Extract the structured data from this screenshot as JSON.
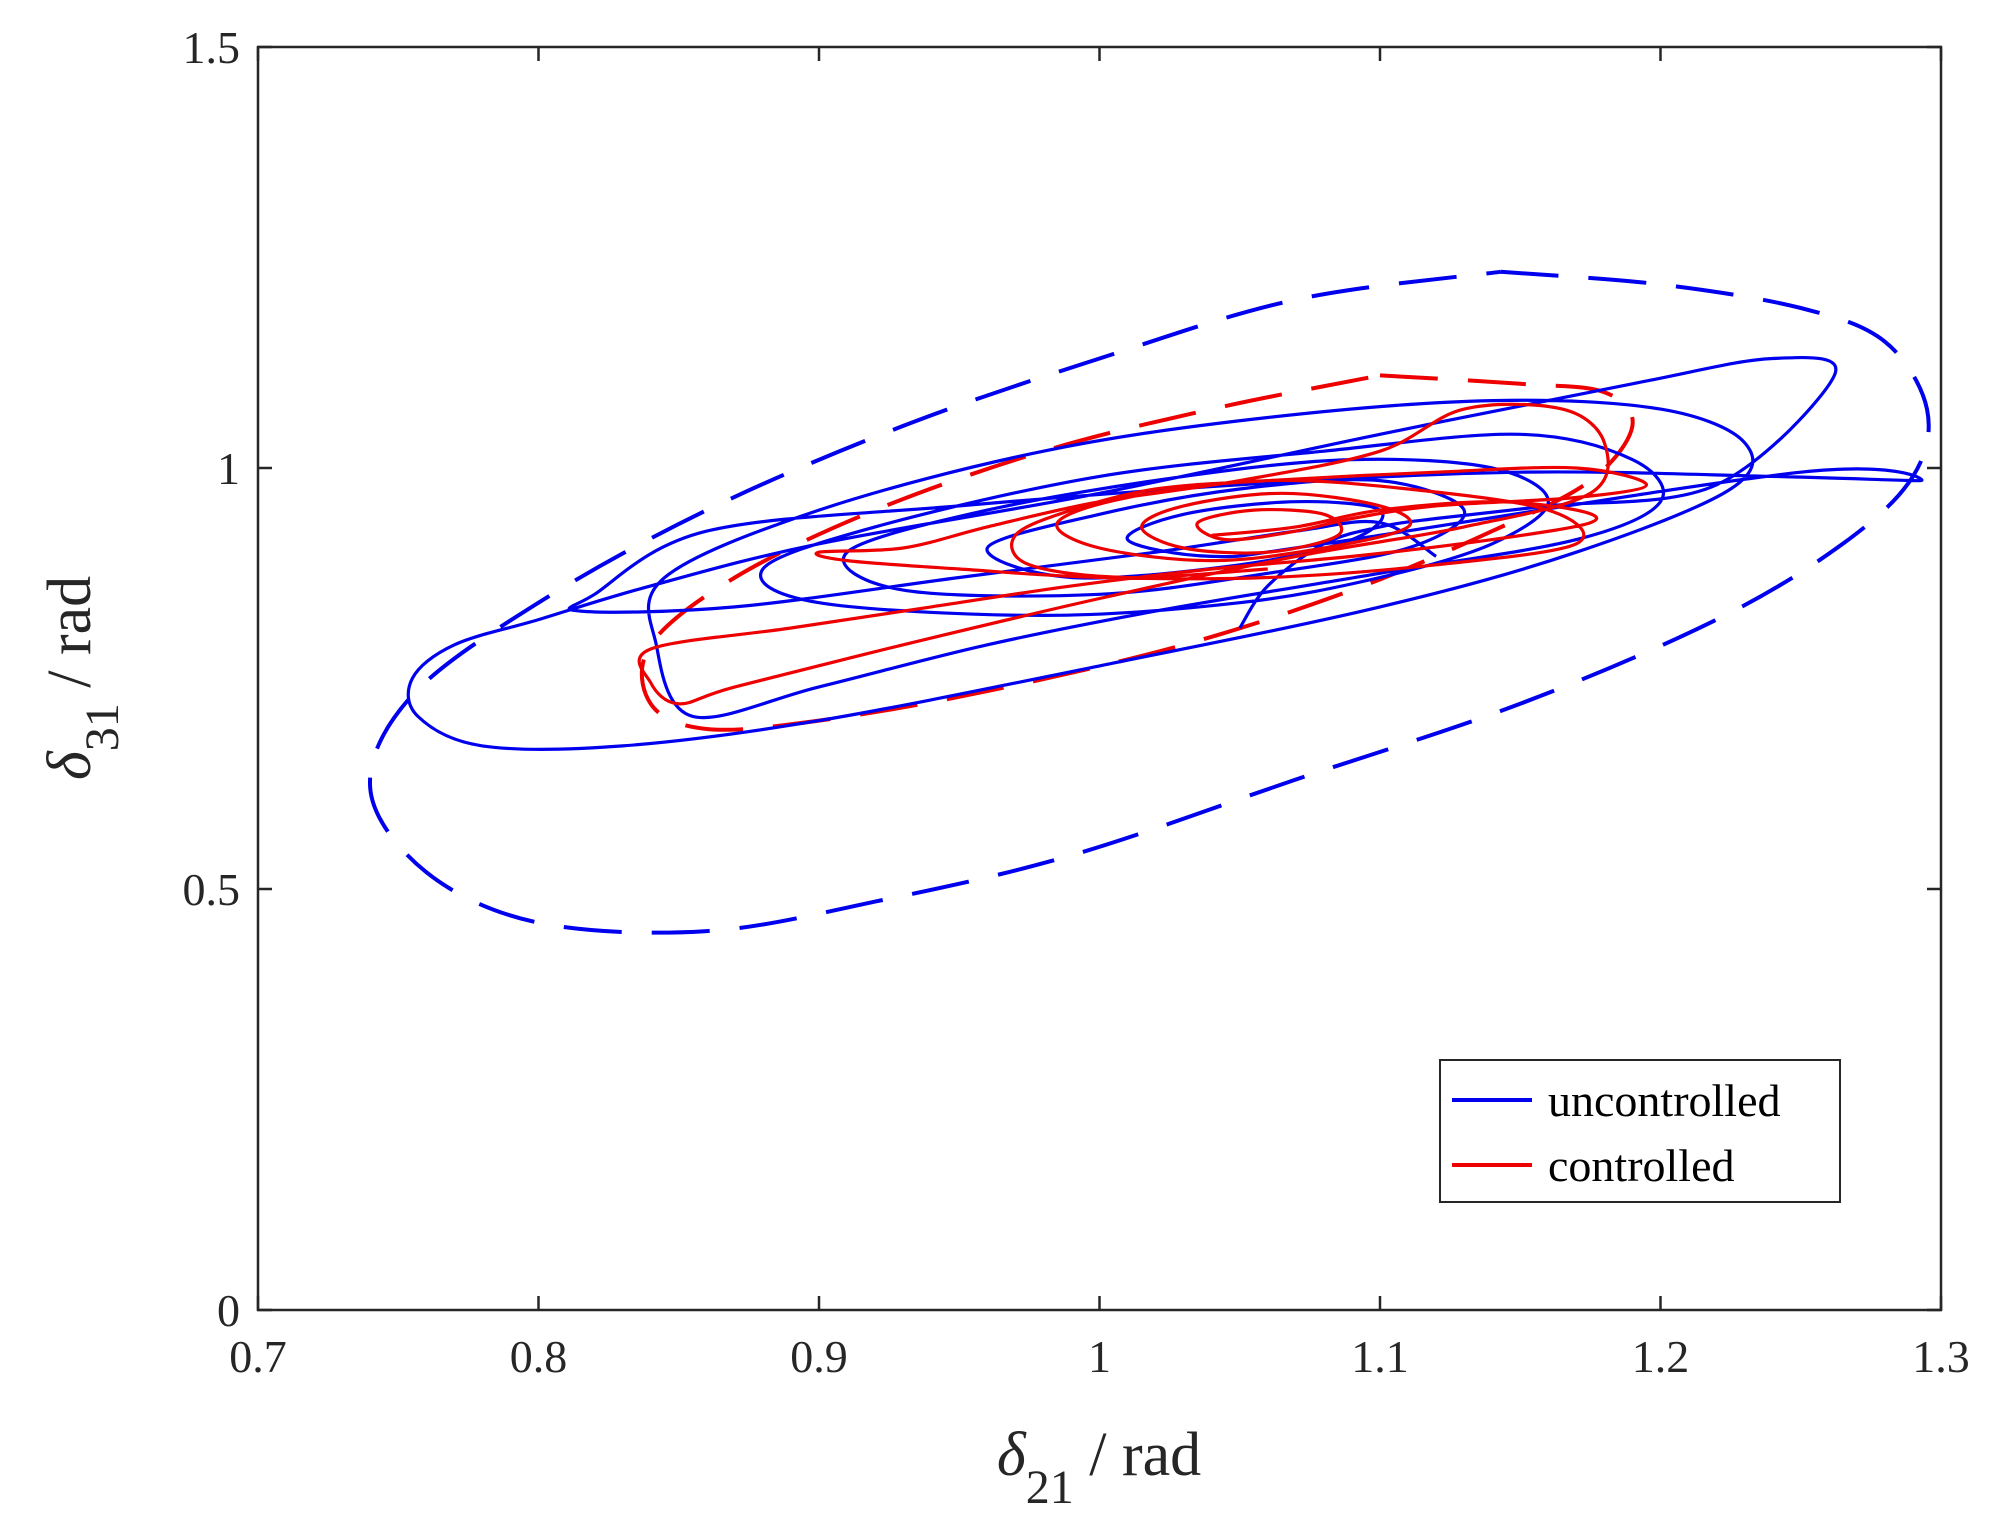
{
  "chart_data": {
    "type": "line",
    "title": "",
    "xlabel": {
      "symbol": "δ",
      "subscript": "21",
      "unit": " / rad"
    },
    "ylabel": {
      "symbol": "δ",
      "subscript": "31",
      "unit": " / rad"
    },
    "xlim": [
      0.7,
      1.3
    ],
    "ylim": [
      0,
      1.5
    ],
    "xticks": [
      0.7,
      0.8,
      0.9,
      1.0,
      1.1,
      1.2,
      1.3
    ],
    "xtick_labels": [
      "0.7",
      "0.8",
      "0.9",
      "1",
      "1.1",
      "1.2",
      "1.3"
    ],
    "yticks": [
      0,
      0.5,
      1.0,
      1.5
    ],
    "ytick_labels": [
      "0",
      "0.5",
      "1",
      "1.5"
    ],
    "grid": false,
    "legend": {
      "position": "bottom-right",
      "entries": [
        "uncontrolled",
        "controlled"
      ]
    },
    "colors": {
      "uncontrolled": "#0000ee",
      "controlled": "#ee0000",
      "axis": "#262626"
    },
    "series": [
      {
        "name": "uncontrolled boundary",
        "style": "dashed",
        "color": "#0000ee",
        "in_legend": false,
        "points": [
          [
            1.143,
            1.233
          ],
          [
            1.2,
            1.218
          ],
          [
            1.25,
            1.19
          ],
          [
            1.28,
            1.15
          ],
          [
            1.295,
            1.07
          ],
          [
            1.29,
            0.99
          ],
          [
            1.265,
            0.91
          ],
          [
            1.22,
            0.82
          ],
          [
            1.15,
            0.72
          ],
          [
            1.07,
            0.63
          ],
          [
            0.99,
            0.54
          ],
          [
            0.92,
            0.485
          ],
          [
            0.86,
            0.45
          ],
          [
            0.8,
            0.46
          ],
          [
            0.76,
            0.52
          ],
          [
            0.74,
            0.62
          ],
          [
            0.755,
            0.73
          ],
          [
            0.8,
            0.84
          ],
          [
            0.86,
            0.95
          ],
          [
            0.93,
            1.05
          ],
          [
            1.0,
            1.13
          ],
          [
            1.07,
            1.2
          ],
          [
            1.143,
            1.233
          ]
        ]
      },
      {
        "name": "controlled boundary",
        "style": "dashed",
        "color": "#ee0000",
        "in_legend": false,
        "points": [
          [
            1.1,
            1.11
          ],
          [
            1.15,
            1.1
          ],
          [
            1.18,
            1.09
          ],
          [
            1.19,
            1.05
          ],
          [
            1.175,
            0.985
          ],
          [
            1.14,
            0.925
          ],
          [
            1.09,
            0.855
          ],
          [
            1.03,
            0.79
          ],
          [
            0.96,
            0.735
          ],
          [
            0.9,
            0.7
          ],
          [
            0.86,
            0.69
          ],
          [
            0.84,
            0.72
          ],
          [
            0.84,
            0.79
          ],
          [
            0.87,
            0.87
          ],
          [
            0.92,
            0.95
          ],
          [
            0.98,
            1.02
          ],
          [
            1.04,
            1.07
          ],
          [
            1.1,
            1.11
          ]
        ]
      },
      {
        "name": "uncontrolled",
        "style": "solid",
        "color": "#0000ee",
        "in_legend": true,
        "points": [
          [
            1.05,
            0.81
          ],
          [
            1.06,
            0.86
          ],
          [
            1.08,
            0.91
          ],
          [
            1.1,
            0.93
          ],
          [
            1.12,
            0.94
          ],
          [
            1.16,
            0.955
          ],
          [
            1.22,
            0.98
          ],
          [
            1.262,
            1.11
          ],
          [
            1.24,
            1.13
          ],
          [
            1.19,
            1.1
          ],
          [
            1.1,
            1.04
          ],
          [
            1.0,
            0.97
          ],
          [
            0.9,
            0.91
          ],
          [
            0.84,
            0.86
          ],
          [
            0.8,
            0.82
          ],
          [
            0.77,
            0.79
          ],
          [
            0.755,
            0.75
          ],
          [
            0.757,
            0.705
          ],
          [
            0.78,
            0.67
          ],
          [
            0.83,
            0.67
          ],
          [
            0.9,
            0.7
          ],
          [
            1.0,
            0.765
          ],
          [
            1.1,
            0.835
          ],
          [
            1.17,
            0.9
          ],
          [
            1.225,
            0.975
          ],
          [
            1.23,
            1.03
          ],
          [
            1.2,
            1.07
          ],
          [
            1.14,
            1.08
          ],
          [
            1.06,
            1.06
          ],
          [
            0.98,
            1.02
          ],
          [
            0.9,
            0.95
          ],
          [
            0.845,
            0.87
          ],
          [
            0.842,
            0.79
          ],
          [
            0.855,
            0.705
          ],
          [
            0.9,
            0.74
          ],
          [
            0.96,
            0.79
          ],
          [
            1.02,
            0.83
          ],
          [
            1.1,
            0.875
          ],
          [
            1.17,
            0.915
          ],
          [
            1.2,
            0.96
          ],
          [
            1.19,
            1.01
          ],
          [
            1.15,
            1.04
          ],
          [
            1.08,
            1.02
          ],
          [
            1.0,
            0.99
          ],
          [
            0.92,
            0.93
          ],
          [
            0.88,
            0.88
          ],
          [
            0.9,
            0.84
          ],
          [
            0.98,
            0.825
          ],
          [
            1.05,
            0.84
          ],
          [
            1.1,
            0.87
          ],
          [
            1.14,
            0.91
          ],
          [
            1.16,
            0.96
          ],
          [
            1.14,
            1.0
          ],
          [
            1.09,
            1.01
          ],
          [
            1.03,
            0.99
          ],
          [
            0.96,
            0.95
          ],
          [
            0.91,
            0.9
          ],
          [
            0.93,
            0.855
          ],
          [
            1.0,
            0.85
          ],
          [
            1.06,
            0.875
          ],
          [
            1.11,
            0.905
          ],
          [
            1.13,
            0.95
          ],
          [
            1.1,
            0.985
          ],
          [
            1.05,
            0.975
          ],
          [
            1.0,
            0.945
          ],
          [
            0.96,
            0.905
          ],
          [
            0.99,
            0.87
          ],
          [
            1.05,
            0.885
          ],
          [
            1.09,
            0.915
          ],
          [
            1.1,
            0.95
          ],
          [
            1.07,
            0.96
          ],
          [
            1.03,
            0.945
          ],
          [
            1.01,
            0.915
          ],
          [
            1.04,
            0.895
          ],
          [
            1.08,
            0.91
          ],
          [
            1.25,
            0.995
          ],
          [
            1.293,
            0.985
          ],
          [
            1.24,
            0.99
          ],
          [
            1.15,
            0.995
          ],
          [
            1.05,
            0.98
          ],
          [
            0.95,
            0.955
          ],
          [
            0.86,
            0.925
          ],
          [
            0.82,
            0.85
          ],
          [
            0.815,
            0.83
          ],
          [
            0.87,
            0.835
          ],
          [
            0.95,
            0.87
          ],
          [
            1.02,
            0.9
          ],
          [
            1.07,
            0.925
          ],
          [
            1.1,
            0.935
          ],
          [
            1.12,
            0.895
          ]
        ]
      },
      {
        "name": "controlled",
        "style": "solid",
        "color": "#ee0000",
        "in_legend": true,
        "points": [
          [
            1.04,
            0.92
          ],
          [
            1.07,
            0.93
          ],
          [
            1.1,
            0.95
          ],
          [
            1.14,
            0.96
          ],
          [
            1.17,
            0.95
          ],
          [
            1.175,
            0.935
          ],
          [
            1.14,
            0.915
          ],
          [
            1.09,
            0.895
          ],
          [
            1.04,
            0.88
          ],
          [
            0.99,
            0.86
          ],
          [
            0.94,
            0.835
          ],
          [
            0.89,
            0.81
          ],
          [
            0.84,
            0.785
          ],
          [
            0.84,
            0.745
          ],
          [
            0.85,
            0.72
          ],
          [
            0.87,
            0.74
          ],
          [
            0.93,
            0.79
          ],
          [
            1.0,
            0.845
          ],
          [
            1.07,
            0.895
          ],
          [
            1.13,
            0.93
          ],
          [
            1.175,
            0.97
          ],
          [
            1.18,
            1.03
          ],
          [
            1.165,
            1.07
          ],
          [
            1.13,
            1.07
          ],
          [
            1.1,
            1.02
          ],
          [
            1.05,
            0.985
          ],
          [
            1.0,
            0.96
          ],
          [
            0.96,
            0.93
          ],
          [
            0.93,
            0.905
          ],
          [
            0.9,
            0.9
          ],
          [
            0.91,
            0.89
          ],
          [
            0.95,
            0.88
          ],
          [
            1.0,
            0.87
          ],
          [
            1.06,
            0.87
          ],
          [
            1.12,
            0.885
          ],
          [
            1.17,
            0.91
          ],
          [
            1.16,
            0.95
          ],
          [
            1.11,
            0.975
          ],
          [
            1.06,
            0.985
          ],
          [
            1.01,
            0.965
          ],
          [
            0.985,
            0.935
          ],
          [
            1.0,
            0.905
          ],
          [
            1.04,
            0.89
          ],
          [
            1.08,
            0.905
          ],
          [
            1.11,
            0.93
          ],
          [
            1.1,
            0.955
          ],
          [
            1.065,
            0.97
          ],
          [
            1.03,
            0.955
          ],
          [
            1.015,
            0.93
          ],
          [
            1.03,
            0.905
          ],
          [
            1.06,
            0.9
          ],
          [
            1.085,
            0.92
          ],
          [
            1.08,
            0.945
          ],
          [
            1.055,
            0.95
          ],
          [
            1.035,
            0.935
          ],
          [
            1.045,
            0.915
          ],
          [
            1.07,
            0.925
          ],
          [
            1.09,
            0.94
          ],
          [
            1.12,
            0.955
          ],
          [
            1.17,
            0.965
          ],
          [
            1.195,
            0.98
          ],
          [
            1.17,
            1.0
          ],
          [
            1.12,
            0.995
          ],
          [
            1.06,
            0.985
          ],
          [
            1.02,
            0.975
          ],
          [
            0.99,
            0.95
          ],
          [
            0.97,
            0.92
          ],
          [
            0.975,
            0.885
          ],
          [
            1.01,
            0.87
          ],
          [
            1.06,
            0.88
          ]
        ]
      }
    ]
  }
}
